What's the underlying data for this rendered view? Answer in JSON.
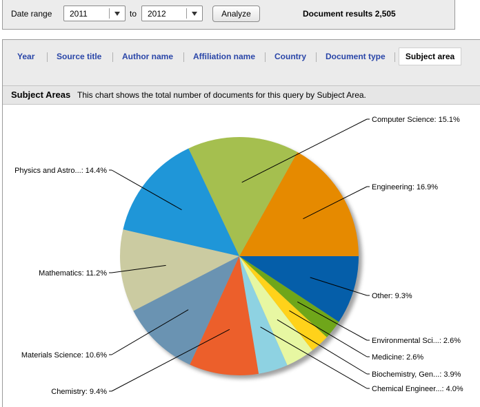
{
  "filter": {
    "date_range_label": "Date range",
    "from_year": "2011",
    "to_label": "to",
    "to_year": "2012",
    "analyze_label": "Analyze",
    "results_text": "Document results 2,505"
  },
  "tabs": [
    {
      "label": "Year"
    },
    {
      "label": "Source title"
    },
    {
      "label": "Author name"
    },
    {
      "label": "Affiliation name"
    },
    {
      "label": "Country"
    },
    {
      "label": "Document type"
    },
    {
      "label": "Subject area",
      "active": true
    }
  ],
  "section": {
    "title": "Subject Areas",
    "description": "This chart shows the total number of documents for this query by Subject Area."
  },
  "chart_data": {
    "type": "pie",
    "slices": [
      {
        "label": "Engineering: 16.9%",
        "value": 16.9,
        "color": "#e68a00"
      },
      {
        "label": "Computer Science: 15.1%",
        "value": 15.1,
        "color": "#a5bf4f"
      },
      {
        "label": "Physics and Astro...: 14.4%",
        "value": 14.4,
        "color": "#1f96d8"
      },
      {
        "label": "Mathematics: 11.2%",
        "value": 11.2,
        "color": "#cbcba1"
      },
      {
        "label": "Materials Science: 10.6%",
        "value": 10.6,
        "color": "#6a93b2"
      },
      {
        "label": "Chemistry: 9.4%",
        "value": 9.4,
        "color": "#ec5f2b"
      },
      {
        "label": "Chemical Engineer...: 4.0%",
        "value": 4.0,
        "color": "#8ed2e2"
      },
      {
        "label": "Biochemistry, Gen...: 3.9%",
        "value": 3.9,
        "color": "#e7f7a2"
      },
      {
        "label": "Medicine: 2.6%",
        "value": 2.6,
        "color": "#ffd21a"
      },
      {
        "label": "Environmental Sci...: 2.6%",
        "value": 2.6,
        "color": "#6fa61a"
      },
      {
        "label": "Other: 9.3%",
        "value": 9.3,
        "color": "#055ea9"
      }
    ]
  }
}
